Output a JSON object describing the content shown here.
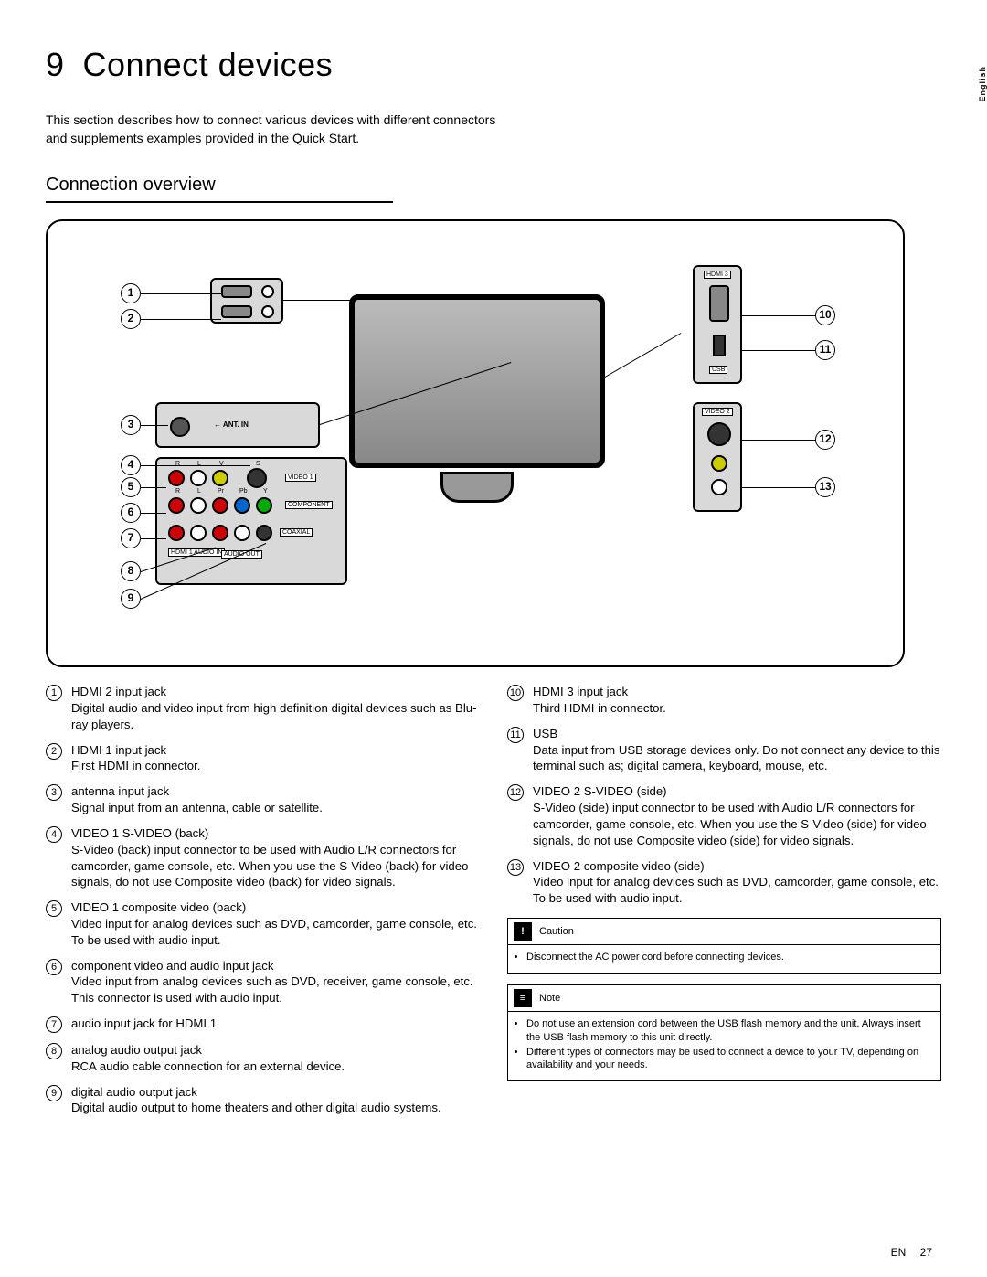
{
  "chapter_number": "9",
  "chapter_title": "Connect devices",
  "intro": "This section describes how to connect various devices with different connectors and supplements examples provided in the Quick Start.",
  "section_title": "Connection overview",
  "lang_tab": "English",
  "diagram": {
    "labels": {
      "ant_in": "← ANT. IN",
      "video1": "VIDEO 1",
      "component": "COMPONENT",
      "coaxial": "COAXIAL",
      "hdmi1_audio": "HDMI 1\nAUDIO IN",
      "audio_out": "AUDIO OUT",
      "hdmi3": "HDMI 3",
      "usb": "USB",
      "video2": "VIDEO 2",
      "r": "R",
      "l": "L",
      "v": "V",
      "s": "S",
      "pr": "Pr",
      "pb": "Pb",
      "y": "Y"
    }
  },
  "left_items": [
    {
      "n": "1",
      "title": "HDMI 2 input jack",
      "desc": "Digital audio and video input from high definition digital devices such as Blu-ray players."
    },
    {
      "n": "2",
      "title": "HDMI 1 input jack",
      "desc": "First HDMI in connector."
    },
    {
      "n": "3",
      "title": "antenna input jack",
      "desc": "Signal input from an antenna, cable or satellite."
    },
    {
      "n": "4",
      "title": "VIDEO 1 S-VIDEO (back)",
      "desc": "S-Video (back) input connector to be used with Audio L/R connectors for camcorder, game console, etc. When you use the S-Video (back) for video signals, do not use Composite video (back) for video signals."
    },
    {
      "n": "5",
      "title": "VIDEO 1 composite video (back)",
      "desc": "Video input for analog devices such as DVD, camcorder, game console, etc. To be used with audio input."
    },
    {
      "n": "6",
      "title": "component video and audio input jack",
      "desc": "Video input from analog devices such as DVD, receiver, game console, etc. This connector is used with audio input."
    },
    {
      "n": "7",
      "title": "audio input jack for HDMI 1",
      "desc": ""
    },
    {
      "n": "8",
      "title": "analog audio output jack",
      "desc": "RCA audio cable connection for an external device."
    },
    {
      "n": "9",
      "title": "digital audio output jack",
      "desc": "Digital audio output to home theaters and other digital audio systems."
    }
  ],
  "right_items": [
    {
      "n": "10",
      "title": "HDMI 3 input jack",
      "desc": "Third HDMI in connector."
    },
    {
      "n": "11",
      "title": "USB",
      "desc": "Data input from USB storage devices only. Do not connect any device to this terminal such as; digital camera, keyboard, mouse, etc."
    },
    {
      "n": "12",
      "title": "VIDEO 2 S-VIDEO (side)",
      "desc": "S-Video (side) input connector to be used with Audio L/R connectors for camcorder, game console, etc. When you use the S-Video (side) for video signals, do not use Composite video (side) for video signals."
    },
    {
      "n": "13",
      "title": "VIDEO 2 composite video (side)",
      "desc": "Video input for analog devices such as DVD, camcorder, game console, etc. To be used with audio input."
    }
  ],
  "caution": {
    "title": "Caution",
    "items": [
      "Disconnect the AC power cord before connecting devices."
    ]
  },
  "note": {
    "title": "Note",
    "items": [
      "Do not use an extension cord between the USB flash memory and the unit. Always insert the USB flash memory to this unit directly.",
      "Different types of connectors may be used to connect a device to your TV, depending on availability and your needs."
    ]
  },
  "footer": {
    "lang": "EN",
    "page": "27"
  }
}
